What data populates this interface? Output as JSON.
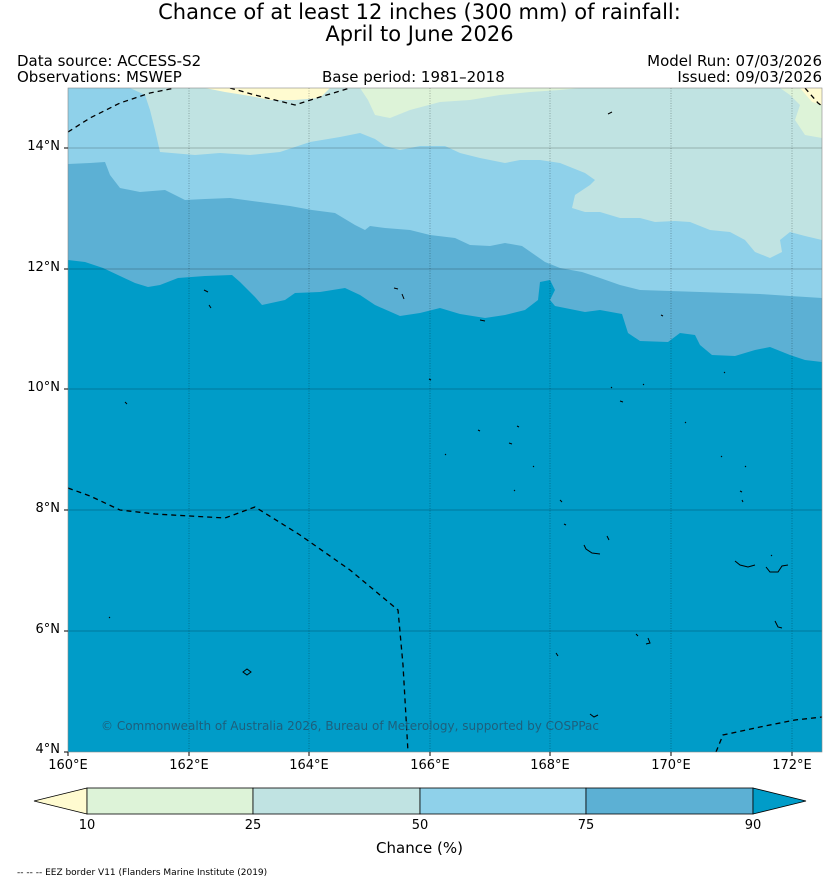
{
  "title": {
    "line1": "Chance of at least 12 inches (300  mm) of rainfall:",
    "line2": "April to June 2026"
  },
  "header": {
    "data_source": "Data source: ACCESS-S2",
    "observations": "Observations: MSWEP",
    "base_period": "Base period: 1981–2018",
    "model_run": "Model Run: 07/03/2026",
    "issued": "Issued: 09/03/2026"
  },
  "map": {
    "y_ticks": [
      "14°N",
      "12°N",
      "10°N",
      "8°N",
      "6°N",
      "4°N"
    ],
    "x_ticks": [
      "160°E",
      "162°E",
      "164°E",
      "166°E",
      "168°E",
      "170°E",
      "172°E"
    ],
    "copyright": "© Commonwealth of Australia 2026, Bureau of Meterology, supported by COSPPac",
    "colors": {
      "lt10": "#fffbd0",
      "10-25": "#ddf3d8",
      "25-50": "#c0e3e2",
      "50-75": "#8fd1ea",
      "75-90": "#5cb0d4",
      "gt90": "#009cc8"
    }
  },
  "colorbar": {
    "ticks": [
      "10",
      "25",
      "50",
      "75",
      "90"
    ],
    "label": "Chance (%)"
  },
  "footer": {
    "eez_note": "-- -- -- EEZ border V11 (Flanders Marine Institute (2019)"
  }
}
